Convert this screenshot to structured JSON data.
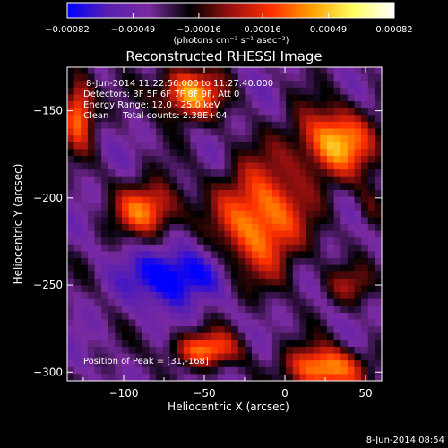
{
  "chart_data": {
    "type": "heatmap",
    "title": "Reconstructed RHESSI Image",
    "xlabel": "Heliocentric X (arcsec)",
    "ylabel": "Heliocentric Y (arcsec)",
    "xlim": [
      -135,
      60
    ],
    "ylim": [
      -305,
      -125
    ],
    "x_ticks": [
      -100,
      -50,
      0,
      50
    ],
    "x_tick_labels": [
      "−100",
      "−50",
      "0",
      "50"
    ],
    "y_ticks": [
      -300,
      -250,
      -200,
      -150
    ],
    "y_tick_labels": [
      "−300",
      "−250",
      "−200",
      "−150"
    ],
    "colorbar": {
      "range": [
        -0.00082,
        0.00082
      ],
      "tick_values": [
        -0.00082,
        -0.00049,
        -0.00016,
        0.00016,
        0.00049,
        0.00082
      ],
      "tick_labels": [
        "−0.00082",
        "−0.00049",
        "−0.00016",
        "0.00016",
        "0.00049",
        "0.00082"
      ],
      "unit_label": "(photons cm⁻² s⁻¹ asec⁻²)",
      "colormap": [
        "#0000ff",
        "#5a1fb0",
        "#7a2aa0",
        "#000000",
        "#9a1010",
        "#ff3000",
        "#ffa000",
        "#ffff60",
        "#ffffff"
      ]
    },
    "annotations": [
      "8-Jun-2014 11:22:56.000 to 11:27:40.000",
      "Detectors: 3F 5F 6F 7F 8F 9F, Att 0",
      "Energy Range: 12.0 - 25.0 keV",
      "Clean     Total counts: 2.38E+04"
    ],
    "peak_label": "Position of Peak = [31,-168]",
    "sources": [
      {
        "x": -128,
        "y": -150,
        "peak": 0.00075,
        "sx": 7,
        "sy": 14
      },
      {
        "x": -60,
        "y": -140,
        "peak": 0.00082,
        "sx": 14,
        "sy": 10
      },
      {
        "x": -85,
        "y": -207,
        "peak": 0.0007,
        "sx": 14,
        "sy": 11
      },
      {
        "x": -15,
        "y": -212,
        "peak": 0.00082,
        "sx": 19,
        "sy": 22
      },
      {
        "x": 31,
        "y": -168,
        "peak": 0.00082,
        "sx": 17,
        "sy": 14
      },
      {
        "x": -50,
        "y": -287,
        "peak": 0.00065,
        "sx": 16,
        "sy": 7
      },
      {
        "x": 25,
        "y": -298,
        "peak": 0.0008,
        "sx": 17,
        "sy": 9
      },
      {
        "x": 40,
        "y": -250,
        "peak": 0.0003,
        "sx": 12,
        "sy": 8
      },
      {
        "x": 52,
        "y": -205,
        "peak": 0.00025,
        "sx": 6,
        "sy": 10
      },
      {
        "x": -70,
        "y": -245,
        "peak": -0.0006,
        "sx": 18,
        "sy": 12
      }
    ]
  },
  "timestamp": "8-Jun-2014 08:54"
}
